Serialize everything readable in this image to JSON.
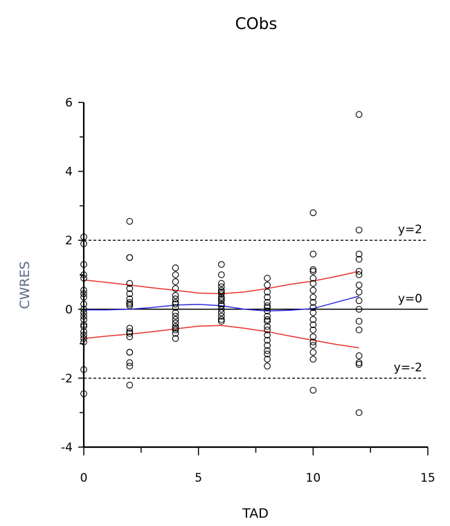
{
  "chart_data": {
    "type": "scatter",
    "title": "CObs",
    "xlabel": "TAD",
    "ylabel": "CWRES",
    "xlim": [
      0,
      15
    ],
    "ylim": [
      -4,
      6
    ],
    "xticks": [
      0,
      5,
      10,
      15
    ],
    "yticks": [
      -4,
      -2,
      0,
      2,
      4,
      6
    ],
    "reference_lines": [
      {
        "y": 2,
        "label": "y=2",
        "style": "dashed"
      },
      {
        "y": 0,
        "label": "y=0",
        "style": "solid"
      },
      {
        "y": -2,
        "label": "y=-2",
        "style": "dashed"
      }
    ],
    "series": [
      {
        "name": "CWRES",
        "kind": "points",
        "x": [
          0,
          0,
          0,
          0,
          0,
          0,
          0,
          0,
          0,
          0,
          0,
          0,
          0,
          0,
          0,
          0,
          0,
          0,
          0,
          0,
          0,
          2,
          2,
          2,
          2,
          2,
          2,
          2,
          2,
          2,
          2,
          2,
          2,
          2,
          2,
          2,
          2,
          2,
          2,
          2,
          4,
          4,
          4,
          4,
          4,
          4,
          4,
          4,
          4,
          4,
          4,
          4,
          4,
          4,
          4,
          4,
          4,
          4,
          6,
          6,
          6,
          6,
          6,
          6,
          6,
          6,
          6,
          6,
          6,
          6,
          6,
          6,
          6,
          6,
          6,
          8,
          8,
          8,
          8,
          8,
          8,
          8,
          8,
          8,
          8,
          8,
          8,
          8,
          8,
          8,
          8,
          8,
          8,
          8,
          8,
          10,
          10,
          10,
          10,
          10,
          10,
          10,
          10,
          10,
          10,
          10,
          10,
          10,
          10,
          10,
          10,
          10,
          10,
          10,
          10,
          12,
          12,
          12,
          12,
          12,
          12,
          12,
          12,
          12,
          12,
          12,
          12,
          12,
          12,
          12,
          12
        ],
        "y": [
          2.1,
          1.9,
          1.3,
          1.0,
          0.9,
          0.45,
          0.35,
          0.15,
          0.0,
          -0.1,
          -0.3,
          -0.45,
          -0.5,
          -0.75,
          -0.85,
          -0.95,
          -1.75,
          -2.45,
          0.55,
          -0.2,
          -0.65,
          2.55,
          1.5,
          1.5,
          0.75,
          0.6,
          0.45,
          0.3,
          0.15,
          0.1,
          -0.55,
          -0.65,
          -0.7,
          -0.8,
          -1.25,
          -1.25,
          -1.55,
          -1.65,
          -2.2,
          0.2,
          1.2,
          1.0,
          0.8,
          0.4,
          0.3,
          0.2,
          0.05,
          -0.1,
          -0.2,
          -0.3,
          -0.4,
          -0.5,
          -0.55,
          -0.6,
          -0.7,
          -0.85,
          0.6,
          0.15,
          1.3,
          1.0,
          0.75,
          0.65,
          0.55,
          0.45,
          0.35,
          0.25,
          0.15,
          0.1,
          0.0,
          -0.1,
          -0.2,
          -0.3,
          -0.35,
          0.5,
          0.3,
          0.9,
          0.7,
          0.5,
          0.35,
          0.2,
          0.1,
          -0.05,
          -0.2,
          -0.35,
          -0.5,
          -0.6,
          -0.75,
          -0.9,
          -1.05,
          -1.2,
          -1.3,
          -1.45,
          -1.65,
          0.05,
          -0.3,
          2.8,
          1.6,
          1.15,
          1.1,
          0.9,
          0.75,
          0.55,
          0.35,
          0.2,
          0.05,
          -0.1,
          -0.3,
          -0.45,
          -0.6,
          -0.8,
          -0.95,
          -1.05,
          -1.25,
          -1.45,
          -2.35,
          5.65,
          2.3,
          1.6,
          1.45,
          1.1,
          1.0,
          0.7,
          0.5,
          0.25,
          0.0,
          -0.35,
          -0.6,
          -1.35,
          -1.55,
          -1.6,
          -3.0
        ]
      },
      {
        "name": "Median smooth",
        "kind": "line",
        "color": "#2b2bde",
        "x": [
          0,
          1,
          2,
          3,
          4,
          5,
          6,
          7,
          8,
          9,
          10,
          11,
          12
        ],
        "y": [
          -0.02,
          -0.02,
          0.0,
          0.05,
          0.12,
          0.14,
          0.1,
          0.0,
          -0.05,
          -0.03,
          0.02,
          0.2,
          0.38
        ]
      },
      {
        "name": "Upper smooth",
        "kind": "line",
        "color": "#e8322c",
        "x": [
          0,
          1,
          2,
          3,
          4,
          5,
          6,
          7,
          8,
          9,
          10,
          11,
          12
        ],
        "y": [
          0.85,
          0.78,
          0.7,
          0.62,
          0.55,
          0.47,
          0.45,
          0.5,
          0.6,
          0.72,
          0.82,
          0.95,
          1.1
        ]
      },
      {
        "name": "Lower smooth",
        "kind": "line",
        "color": "#e8322c",
        "x": [
          0,
          1,
          2,
          3,
          4,
          5,
          6,
          7,
          8,
          9,
          10,
          11,
          12
        ],
        "y": [
          -0.85,
          -0.78,
          -0.72,
          -0.65,
          -0.57,
          -0.49,
          -0.47,
          -0.55,
          -0.65,
          -0.78,
          -0.9,
          -1.02,
          -1.12
        ]
      }
    ]
  }
}
